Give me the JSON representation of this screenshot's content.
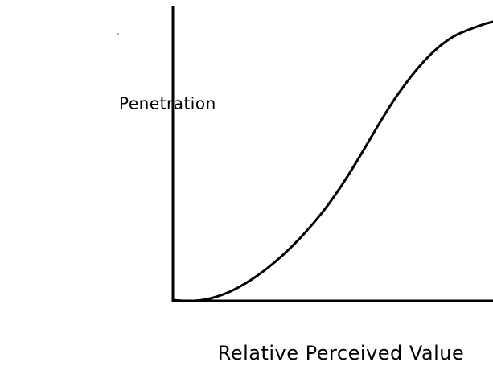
{
  "axes": {
    "y_label": "Penetration",
    "x_label": "Relative Perceived Value"
  }
}
